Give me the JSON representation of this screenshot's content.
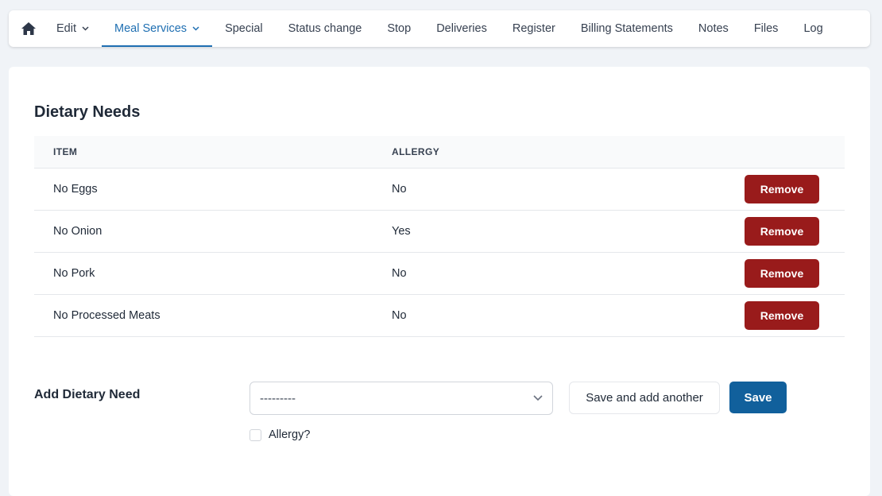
{
  "nav": {
    "items": [
      {
        "label": "Edit",
        "dropdown": true
      },
      {
        "label": "Meal Services",
        "dropdown": true,
        "active": true
      },
      {
        "label": "Special"
      },
      {
        "label": "Status change"
      },
      {
        "label": "Stop"
      },
      {
        "label": "Deliveries"
      },
      {
        "label": "Register"
      },
      {
        "label": "Billing Statements"
      },
      {
        "label": "Notes"
      },
      {
        "label": "Files"
      },
      {
        "label": "Log"
      }
    ]
  },
  "dietary": {
    "title": "Dietary Needs",
    "columns": [
      "ITEM",
      "ALLERGY"
    ],
    "rows": [
      {
        "item": "No Eggs",
        "allergy": "No"
      },
      {
        "item": "No Onion",
        "allergy": "Yes"
      },
      {
        "item": "No Pork",
        "allergy": "No"
      },
      {
        "item": "No Processed Meats",
        "allergy": "No"
      }
    ],
    "remove_label": "Remove"
  },
  "add": {
    "label": "Add Dietary Need",
    "select_value": "---------",
    "allergy_label": "Allergy?",
    "save_another_label": "Save and add another",
    "save_label": "Save"
  },
  "colors": {
    "accent": "#1f6fb2",
    "danger": "#991b1b",
    "primary": "#11609c"
  }
}
